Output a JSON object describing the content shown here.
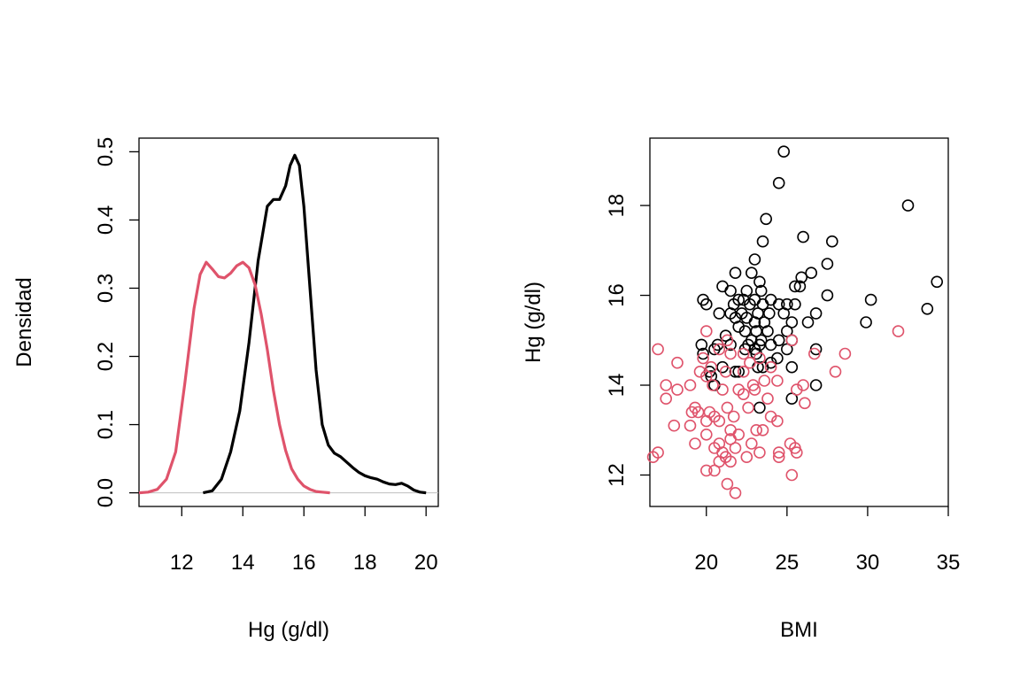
{
  "chart_data": [
    {
      "type": "line",
      "title": "",
      "xlabel": "Hg (g/dl)",
      "ylabel": "Densidad",
      "xlim": [
        10.6,
        20.4
      ],
      "ylim": [
        -0.02,
        0.52
      ],
      "xticks": [
        "12",
        "14",
        "16",
        "18",
        "20"
      ],
      "yticks": [
        "0.0",
        "0.1",
        "0.2",
        "0.3",
        "0.4",
        "0.5"
      ],
      "grid": false,
      "legend": "none",
      "colors": {
        "black": "#000000",
        "pink": "#DF536B",
        "zero_line": "#BEBEBE"
      },
      "series": [
        {
          "color": "#000000",
          "x": [
            12.7,
            13.0,
            13.3,
            13.6,
            13.9,
            14.2,
            14.5,
            14.8,
            15.0,
            15.2,
            15.4,
            15.55,
            15.7,
            15.85,
            16.0,
            16.2,
            16.4,
            16.6,
            16.8,
            17.0,
            17.2,
            17.4,
            17.6,
            17.8,
            18.0,
            18.2,
            18.4,
            18.6,
            18.8,
            19.0,
            19.2,
            19.4,
            19.6,
            19.8,
            20.0
          ],
          "y": [
            0.0,
            0.003,
            0.02,
            0.06,
            0.12,
            0.22,
            0.34,
            0.42,
            0.43,
            0.43,
            0.45,
            0.48,
            0.495,
            0.48,
            0.42,
            0.3,
            0.18,
            0.1,
            0.07,
            0.058,
            0.053,
            0.045,
            0.037,
            0.03,
            0.025,
            0.022,
            0.02,
            0.016,
            0.013,
            0.012,
            0.014,
            0.01,
            0.004,
            0.001,
            0.0
          ]
        },
        {
          "color": "#DF536B",
          "x": [
            10.6,
            10.9,
            11.2,
            11.5,
            11.8,
            12.1,
            12.4,
            12.6,
            12.8,
            13.0,
            13.2,
            13.4,
            13.6,
            13.8,
            14.0,
            14.2,
            14.4,
            14.6,
            14.8,
            15.0,
            15.2,
            15.4,
            15.6,
            15.8,
            16.0,
            16.2,
            16.4,
            16.6,
            16.85
          ],
          "y": [
            0.0,
            0.001,
            0.005,
            0.02,
            0.06,
            0.16,
            0.27,
            0.32,
            0.338,
            0.328,
            0.317,
            0.315,
            0.322,
            0.333,
            0.338,
            0.33,
            0.305,
            0.262,
            0.21,
            0.15,
            0.1,
            0.062,
            0.035,
            0.02,
            0.01,
            0.005,
            0.002,
            0.001,
            0.0
          ]
        }
      ]
    },
    {
      "type": "scatter",
      "title": "",
      "xlabel": "BMI",
      "ylabel": "Hg (g/dl)",
      "xlim": [
        16.5,
        35.0
      ],
      "ylim": [
        11.3,
        19.5
      ],
      "xticks": [
        "20",
        "25",
        "30",
        "35"
      ],
      "yticks": [
        "12",
        "14",
        "16",
        "18"
      ],
      "grid": false,
      "legend": "none",
      "colors": {
        "black": "#000000",
        "pink": "#DF536B"
      },
      "series": [
        {
          "color": "#000000",
          "points": [
            [
              24.8,
              19.2
            ],
            [
              24.5,
              18.5
            ],
            [
              32.5,
              18.0
            ],
            [
              23.7,
              17.7
            ],
            [
              26.0,
              17.3
            ],
            [
              27.8,
              17.2
            ],
            [
              23.5,
              17.2
            ],
            [
              27.5,
              16.7
            ],
            [
              23.0,
              16.8
            ],
            [
              26.5,
              16.5
            ],
            [
              21.8,
              16.5
            ],
            [
              22.8,
              16.5
            ],
            [
              34.3,
              16.3
            ],
            [
              25.9,
              16.4
            ],
            [
              23.3,
              16.3
            ],
            [
              25.5,
              16.2
            ],
            [
              25.8,
              16.2
            ],
            [
              21.0,
              16.2
            ],
            [
              21.5,
              16.1
            ],
            [
              22.5,
              16.1
            ],
            [
              23.4,
              16.1
            ],
            [
              27.5,
              16.0
            ],
            [
              19.8,
              15.9
            ],
            [
              22.0,
              15.9
            ],
            [
              22.3,
              15.9
            ],
            [
              23.0,
              15.9
            ],
            [
              24.0,
              15.9
            ],
            [
              30.2,
              15.9
            ],
            [
              20.0,
              15.8
            ],
            [
              21.7,
              15.8
            ],
            [
              22.7,
              15.8
            ],
            [
              23.5,
              15.8
            ],
            [
              24.5,
              15.8
            ],
            [
              25.0,
              15.8
            ],
            [
              25.5,
              15.8
            ],
            [
              33.7,
              15.7
            ],
            [
              20.8,
              15.6
            ],
            [
              21.5,
              15.6
            ],
            [
              22.2,
              15.6
            ],
            [
              23.2,
              15.6
            ],
            [
              23.9,
              15.6
            ],
            [
              24.8,
              15.6
            ],
            [
              26.8,
              15.6
            ],
            [
              21.8,
              15.5
            ],
            [
              22.5,
              15.5
            ],
            [
              23.0,
              15.4
            ],
            [
              23.6,
              15.4
            ],
            [
              25.3,
              15.4
            ],
            [
              26.3,
              15.4
            ],
            [
              29.9,
              15.4
            ],
            [
              22.0,
              15.3
            ],
            [
              22.4,
              15.2
            ],
            [
              23.1,
              15.2
            ],
            [
              23.8,
              15.2
            ],
            [
              25.0,
              15.2
            ],
            [
              21.2,
              15.1
            ],
            [
              22.8,
              15.0
            ],
            [
              23.4,
              15.0
            ],
            [
              24.5,
              15.0
            ],
            [
              25.3,
              15.0
            ],
            [
              19.7,
              14.9
            ],
            [
              20.7,
              14.9
            ],
            [
              21.5,
              14.9
            ],
            [
              22.6,
              14.9
            ],
            [
              23.3,
              14.9
            ],
            [
              24.0,
              14.9
            ],
            [
              20.5,
              14.8
            ],
            [
              22.4,
              14.8
            ],
            [
              23.0,
              14.8
            ],
            [
              25.0,
              14.8
            ],
            [
              26.8,
              14.8
            ],
            [
              19.8,
              14.7
            ],
            [
              23.1,
              14.7
            ],
            [
              24.4,
              14.6
            ],
            [
              24.0,
              14.5
            ],
            [
              21.0,
              14.4
            ],
            [
              23.2,
              14.4
            ],
            [
              23.5,
              14.4
            ],
            [
              25.3,
              14.4
            ],
            [
              20.2,
              14.3
            ],
            [
              21.8,
              14.3
            ],
            [
              22.0,
              14.3
            ],
            [
              20.3,
              14.2
            ],
            [
              20.5,
              14.0
            ],
            [
              26.8,
              14.0
            ],
            [
              25.3,
              13.7
            ],
            [
              23.3,
              13.5
            ]
          ]
        },
        {
          "color": "#DF536B",
          "points": [
            [
              31.9,
              15.2
            ],
            [
              20.0,
              15.2
            ],
            [
              21.3,
              15.0
            ],
            [
              25.3,
              15.0
            ],
            [
              17.0,
              14.8
            ],
            [
              20.8,
              14.8
            ],
            [
              21.5,
              14.7
            ],
            [
              22.3,
              14.7
            ],
            [
              26.7,
              14.7
            ],
            [
              28.6,
              14.7
            ],
            [
              19.8,
              14.6
            ],
            [
              23.3,
              14.6
            ],
            [
              22.7,
              14.5
            ],
            [
              18.2,
              14.5
            ],
            [
              20.3,
              14.4
            ],
            [
              24.0,
              14.4
            ],
            [
              19.6,
              14.3
            ],
            [
              21.2,
              14.3
            ],
            [
              22.3,
              14.3
            ],
            [
              28.0,
              14.3
            ],
            [
              20.0,
              14.2
            ],
            [
              23.6,
              14.1
            ],
            [
              24.4,
              14.1
            ],
            [
              17.5,
              14.0
            ],
            [
              19.0,
              14.0
            ],
            [
              20.4,
              14.0
            ],
            [
              22.9,
              14.0
            ],
            [
              26.0,
              14.0
            ],
            [
              25.6,
              13.9
            ],
            [
              18.2,
              13.9
            ],
            [
              21.0,
              13.9
            ],
            [
              22.0,
              13.9
            ],
            [
              23.0,
              13.9
            ],
            [
              22.3,
              13.8
            ],
            [
              17.5,
              13.7
            ],
            [
              23.8,
              13.7
            ],
            [
              26.1,
              13.6
            ],
            [
              19.3,
              13.5
            ],
            [
              21.3,
              13.5
            ],
            [
              22.6,
              13.5
            ],
            [
              19.1,
              13.4
            ],
            [
              19.5,
              13.4
            ],
            [
              20.2,
              13.4
            ],
            [
              20.5,
              13.3
            ],
            [
              21.7,
              13.3
            ],
            [
              24.0,
              13.3
            ],
            [
              24.4,
              13.2
            ],
            [
              20.0,
              13.2
            ],
            [
              20.8,
              13.2
            ],
            [
              19.0,
              13.1
            ],
            [
              18.0,
              13.1
            ],
            [
              21.5,
              13.0
            ],
            [
              23.1,
              13.0
            ],
            [
              23.5,
              13.0
            ],
            [
              20.0,
              12.9
            ],
            [
              22.0,
              12.9
            ],
            [
              21.5,
              12.8
            ],
            [
              19.3,
              12.7
            ],
            [
              20.8,
              12.7
            ],
            [
              22.8,
              12.7
            ],
            [
              25.2,
              12.7
            ],
            [
              20.5,
              12.6
            ],
            [
              21.8,
              12.6
            ],
            [
              25.5,
              12.6
            ],
            [
              21.0,
              12.5
            ],
            [
              17.0,
              12.5
            ],
            [
              23.3,
              12.5
            ],
            [
              24.5,
              12.5
            ],
            [
              25.6,
              12.5
            ],
            [
              16.7,
              12.4
            ],
            [
              21.2,
              12.4
            ],
            [
              22.5,
              12.4
            ],
            [
              24.5,
              12.4
            ],
            [
              20.8,
              12.3
            ],
            [
              21.5,
              12.3
            ],
            [
              20.0,
              12.1
            ],
            [
              20.5,
              12.1
            ],
            [
              25.3,
              12.0
            ],
            [
              21.3,
              11.8
            ],
            [
              21.8,
              11.6
            ]
          ]
        }
      ]
    }
  ]
}
